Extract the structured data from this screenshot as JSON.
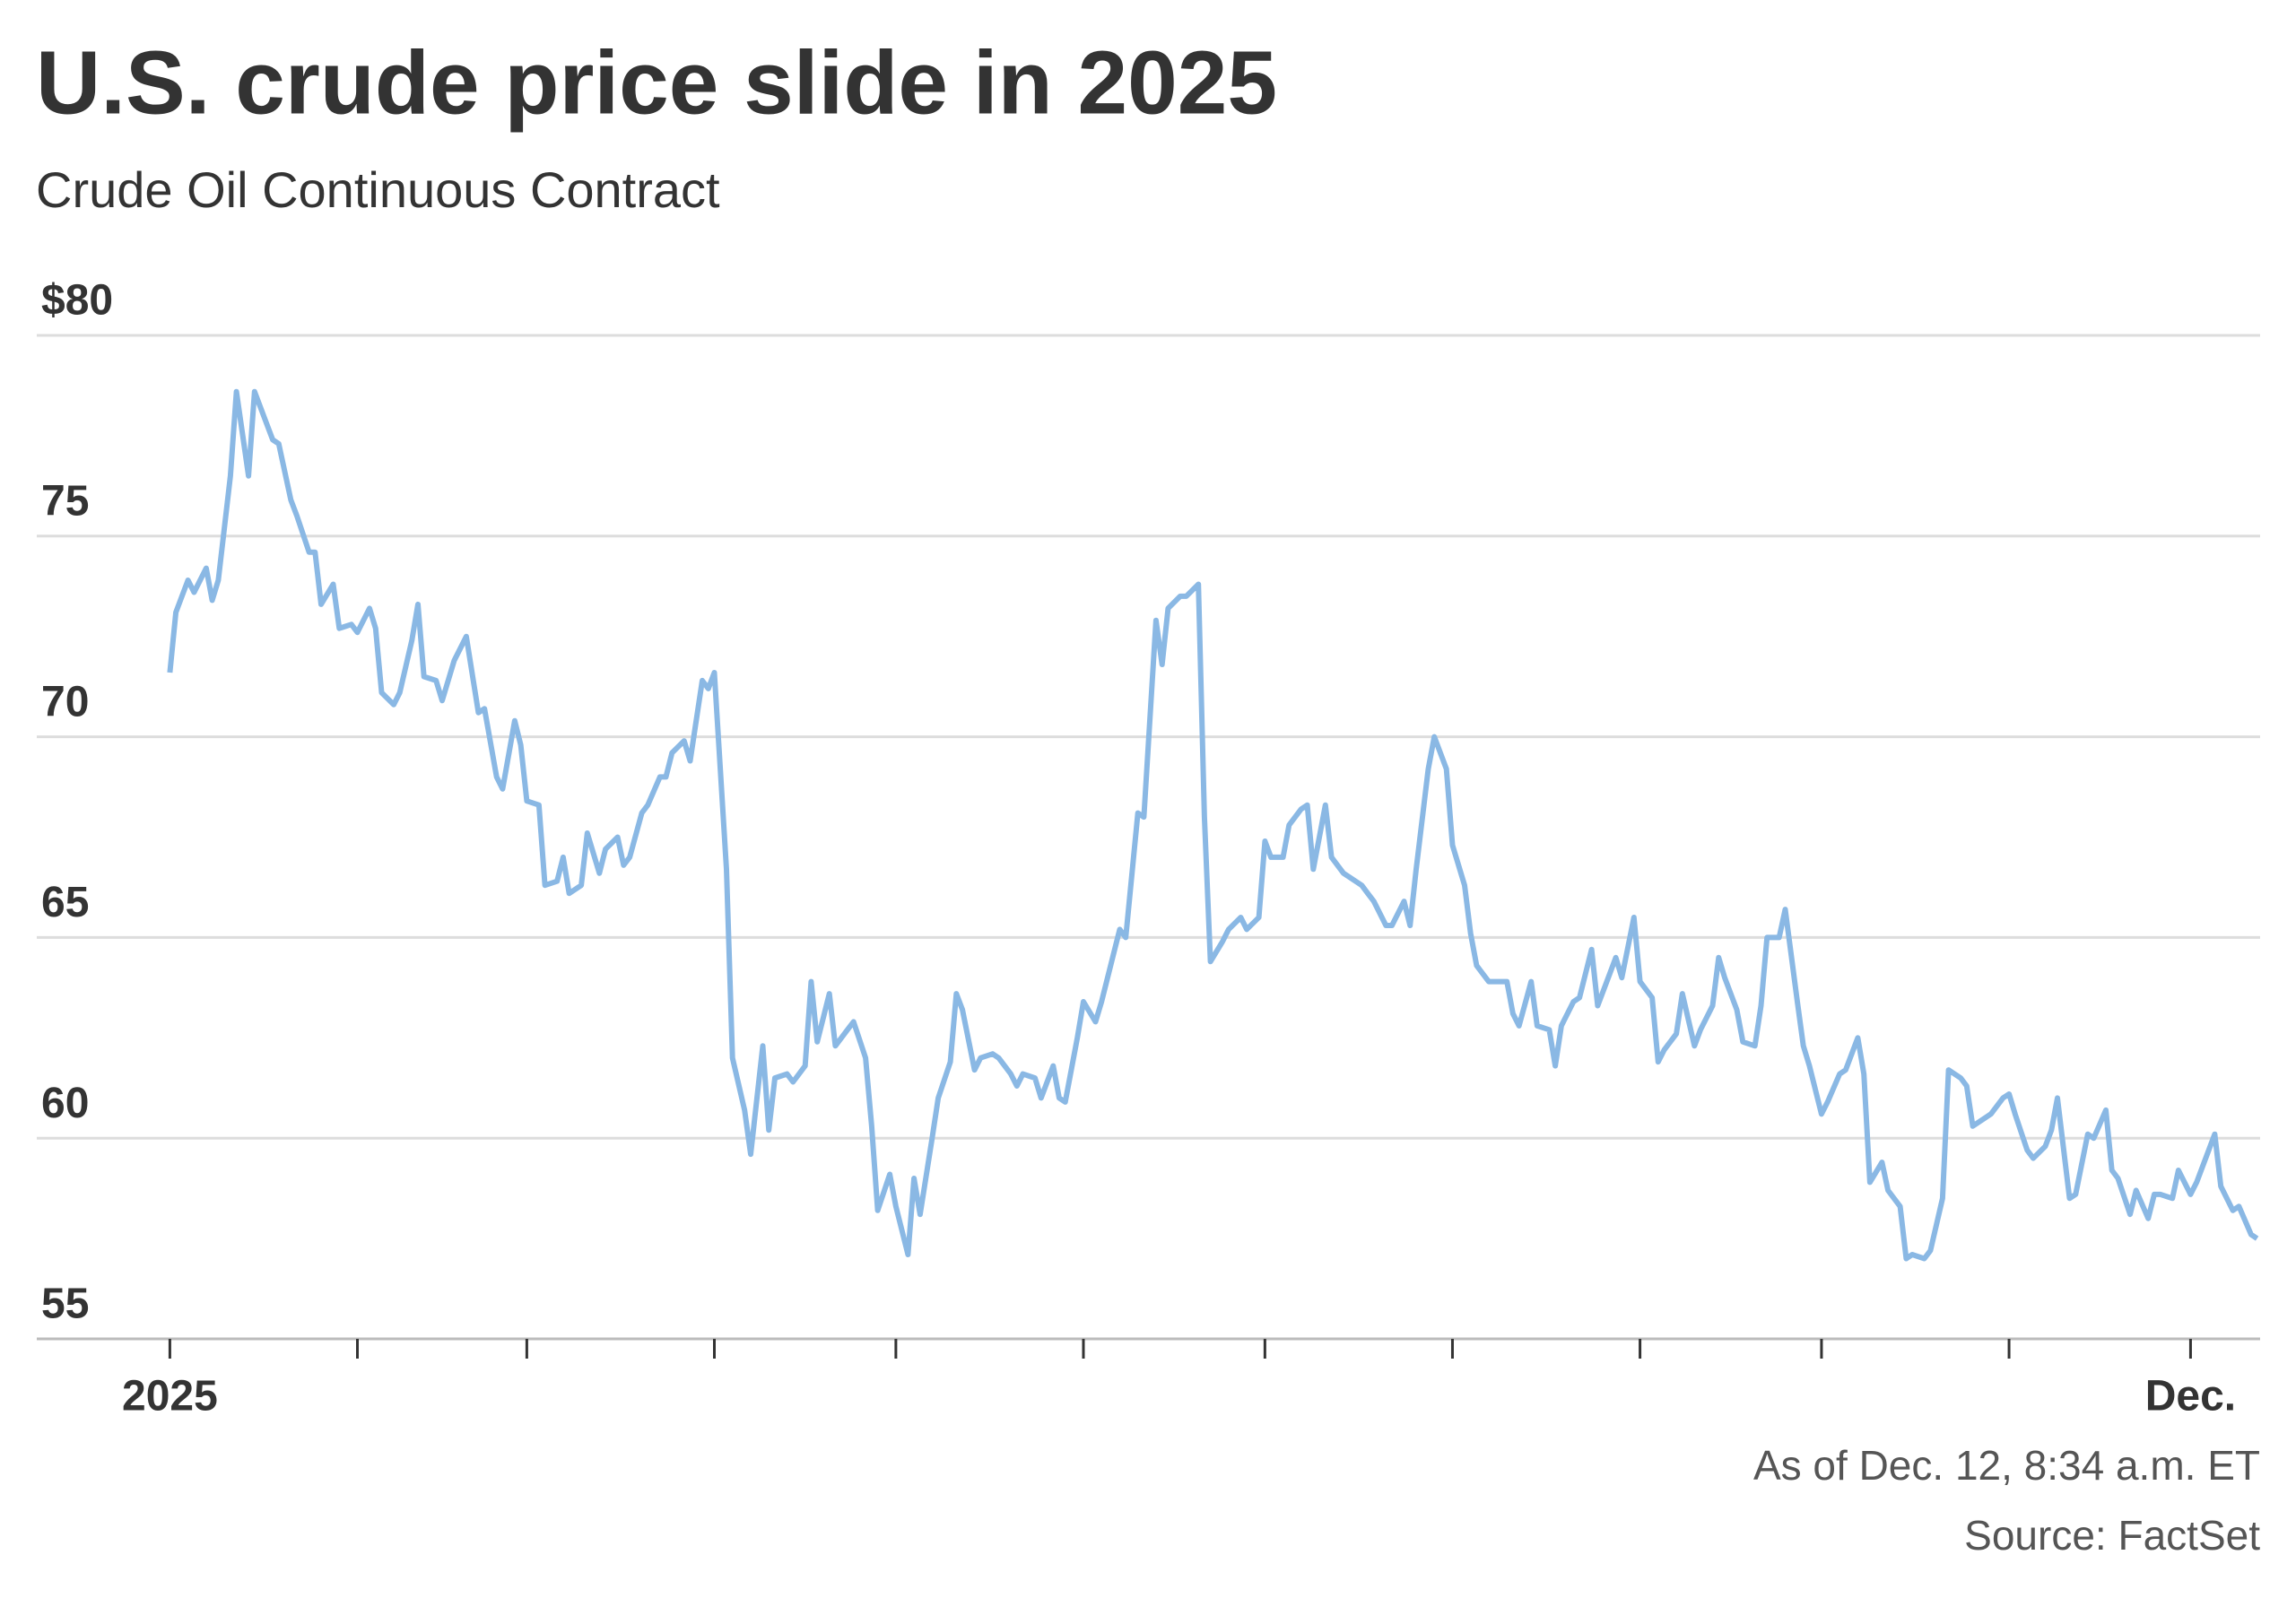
{
  "chart_data": {
    "type": "line",
    "title": "U.S. crude price slide in 2025",
    "subtitle": "Crude Oil Continuous Contract",
    "notes": [
      "As of Dec. 12, 8:34 a.m. ET",
      "Source: FactSet"
    ],
    "color": "#8ab8e4",
    "grid": true,
    "xlim": [
      -22,
      345.5
    ],
    "xticks": [
      {
        "value": 0,
        "label": "2025"
      },
      {
        "value": 334,
        "label": "Dec."
      }
    ],
    "xminorticks": [
      31,
      59,
      90,
      120,
      151,
      181,
      212,
      243,
      273,
      304
    ],
    "ylim": [
      55,
      80
    ],
    "yticks": [
      55,
      60,
      65,
      70,
      75,
      {
        "value": 80,
        "label": "$80"
      }
    ],
    "x": [
      0,
      1,
      3,
      4,
      6,
      7,
      8,
      10,
      11,
      13,
      14,
      16,
      17,
      18,
      20,
      21,
      23,
      24,
      25,
      27,
      28,
      30,
      31,
      33,
      34,
      35,
      37,
      38,
      40,
      41,
      42,
      44,
      45,
      47,
      48,
      49,
      51,
      52,
      54,
      55,
      57,
      58,
      59,
      61,
      62,
      64,
      65,
      66,
      68,
      69,
      71,
      72,
      74,
      75,
      76,
      78,
      79,
      81,
      82,
      83,
      85,
      86,
      88,
      89,
      90,
      92,
      93,
      95,
      96,
      98,
      99,
      100,
      102,
      103,
      105,
      106,
      107,
      109,
      110,
      112,
      113,
      115,
      116,
      117,
      119,
      120,
      122,
      123,
      124,
      126,
      127,
      129,
      130,
      131,
      133,
      134,
      136,
      137,
      139,
      140,
      141,
      143,
      144,
      146,
      147,
      148,
      150,
      151,
      153,
      154,
      156,
      157,
      158,
      160,
      161,
      163,
      164,
      165,
      167,
      168,
      170,
      171,
      172,
      174,
      175,
      177,
      178,
      180,
      181,
      182,
      184,
      185,
      187,
      188,
      189,
      191,
      192,
      194,
      195,
      197,
      198,
      199,
      201,
      202,
      204,
      205,
      206,
      208,
      209,
      211,
      212,
      214,
      215,
      216,
      218,
      219,
      221,
      222,
      223,
      225,
      226,
      228,
      229,
      230,
      232,
      233,
      235,
      236,
      238,
      239,
      240,
      242,
      243,
      245,
      246,
      247,
      249,
      250,
      252,
      253,
      255,
      256,
      257,
      259,
      260,
      262,
      263,
      264,
      266,
      267,
      269,
      270,
      271,
      273,
      274,
      276,
      277,
      279,
      280,
      281,
      283,
      284,
      286,
      287,
      288,
      290,
      291,
      293,
      294,
      296,
      297,
      298,
      300,
      301,
      303,
      304,
      305,
      307,
      308,
      310,
      311,
      312,
      314,
      315,
      317,
      318,
      320,
      321,
      322,
      324,
      325,
      327,
      328,
      329,
      331,
      332,
      334,
      335,
      337,
      338,
      339,
      341,
      342,
      344,
      345
    ],
    "values": [
      71.6,
      73.1,
      73.9,
      73.6,
      74.2,
      73.4,
      73.9,
      76.5,
      78.6,
      76.5,
      78.6,
      77.8,
      77.4,
      77.3,
      75.9,
      75.5,
      74.6,
      74.6,
      73.3,
      73.8,
      72.7,
      72.8,
      72.6,
      73.2,
      72.7,
      71.1,
      70.8,
      71.1,
      72.4,
      73.3,
      71.5,
      71.4,
      70.9,
      71.9,
      72.2,
      72.5,
      70.6,
      70.7,
      69.0,
      68.7,
      70.4,
      69.8,
      68.4,
      68.3,
      66.3,
      66.4,
      67.0,
      66.1,
      66.3,
      67.6,
      66.6,
      67.2,
      67.5,
      66.8,
      67.0,
      68.1,
      68.3,
      69.0,
      69.0,
      69.6,
      69.9,
      69.4,
      71.4,
      71.2,
      71.6,
      66.7,
      62.0,
      60.7,
      59.6,
      62.3,
      60.2,
      61.5,
      61.6,
      61.4,
      61.8,
      63.9,
      62.4,
      63.6,
      62.3,
      62.7,
      62.9,
      62.0,
      60.3,
      58.2,
      59.1,
      58.3,
      57.1,
      59.0,
      58.1,
      60.0,
      61.0,
      61.9,
      63.6,
      63.2,
      61.7,
      62.0,
      62.1,
      62.0,
      61.6,
      61.3,
      61.6,
      61.5,
      61.0,
      61.8,
      61.0,
      60.9,
      62.5,
      63.4,
      62.9,
      63.4,
      64.6,
      65.2,
      65.0,
      68.1,
      68.0,
      72.9,
      71.8,
      73.2,
      73.5,
      73.5,
      73.8,
      68.0,
      64.4,
      64.9,
      65.2,
      65.5,
      65.2,
      65.5,
      67.4,
      67.0,
      67.0,
      67.8,
      68.2,
      68.3,
      66.7,
      68.3,
      67.0,
      66.6,
      66.5,
      66.3,
      66.1,
      65.9,
      65.3,
      65.3,
      65.9,
      65.3,
      66.7,
      69.2,
      70.0,
      69.2,
      67.3,
      66.3,
      65.1,
      64.3,
      63.9,
      63.9,
      63.9,
      63.1,
      62.8,
      63.9,
      62.8,
      62.7,
      61.8,
      62.8,
      63.4,
      63.5,
      64.7,
      63.3,
      64.1,
      64.5,
      64.0,
      65.5,
      63.9,
      63.5,
      61.9,
      62.2,
      62.6,
      63.6,
      62.3,
      62.7,
      63.3,
      64.5,
      64.0,
      63.2,
      62.4,
      62.3,
      63.3,
      65.0,
      65.0,
      65.7,
      63.4,
      62.3,
      61.8,
      60.6,
      60.9,
      61.6,
      61.7,
      62.5,
      61.6,
      58.9,
      59.4,
      58.7,
      58.3,
      57.0,
      57.1,
      57.0,
      57.2,
      58.5,
      61.7,
      61.5,
      61.3,
      60.3,
      60.5,
      60.6,
      61.0,
      61.1,
      60.6,
      59.7,
      59.5,
      59.8,
      60.2,
      61.0,
      58.5,
      58.6,
      60.1,
      60.0,
      60.7,
      59.2,
      59.0,
      58.1,
      58.7,
      58.0,
      58.6,
      58.6,
      58.5,
      59.2,
      58.6,
      58.9,
      59.7,
      60.1,
      58.8,
      58.2,
      58.3,
      57.6,
      57.5
    ]
  }
}
